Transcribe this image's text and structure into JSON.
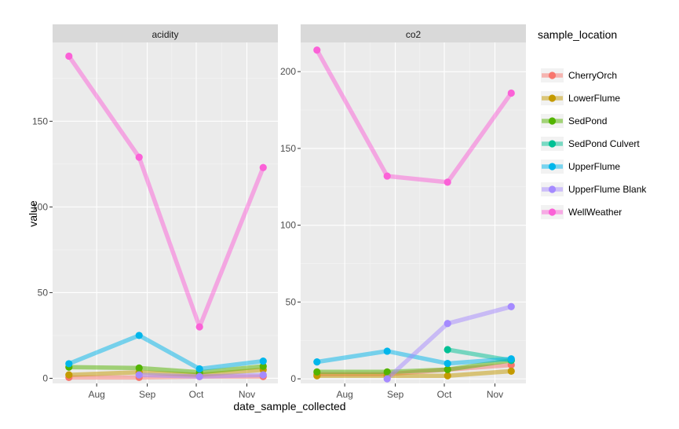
{
  "chart_data": {
    "type": "line",
    "xlabel": "date_sample_collected",
    "ylabel": "value",
    "legend_title": "sample_location",
    "legend_position": "right",
    "grid": true,
    "x_ticks": [
      "Aug",
      "Sep",
      "Oct",
      "Nov"
    ],
    "x_dates": [
      "2014-07-15",
      "2014-08-27",
      "2014-10-03",
      "2014-11-11"
    ],
    "colors": {
      "CherryOrch": "#F8766D",
      "LowerFlume": "#C49A00",
      "SedPond": "#53B400",
      "SedPond Culvert": "#00C094",
      "UpperFlume": "#00B6EB",
      "UpperFlume Blank": "#A58AFF",
      "WellWeather": "#FB61D7"
    },
    "panels": [
      {
        "title": "acidity",
        "y_ticks": [
          0,
          50,
          100,
          150
        ],
        "ylim": [
          -3,
          196
        ],
        "series": [
          {
            "name": "CherryOrch",
            "values": [
              0.5,
              0.5,
              1,
              1
            ]
          },
          {
            "name": "LowerFlume",
            "values": [
              2,
              3.5,
              2,
              5
            ]
          },
          {
            "name": "SedPond",
            "values": [
              6.5,
              6,
              3.5,
              7
            ]
          },
          {
            "name": "UpperFlume",
            "values": [
              8.5,
              25,
              5.5,
              10
            ]
          },
          {
            "name": "UpperFlume Blank",
            "values": [
              null,
              2,
              1,
              2
            ]
          },
          {
            "name": "WellWeather",
            "values": [
              188,
              129,
              30,
              123
            ]
          }
        ]
      },
      {
        "title": "co2",
        "y_ticks": [
          0,
          50,
          100,
          150,
          200
        ],
        "ylim": [
          -3,
          219
        ],
        "series": [
          {
            "name": "CherryOrch",
            "values": [
              3,
              3,
              6,
              9
            ]
          },
          {
            "name": "LowerFlume",
            "values": [
              2,
              2,
              2,
              5
            ]
          },
          {
            "name": "SedPond",
            "values": [
              4.5,
              4.5,
              6,
              12
            ]
          },
          {
            "name": "SedPond Culvert",
            "values": [
              null,
              null,
              19,
              12
            ]
          },
          {
            "name": "UpperFlume",
            "values": [
              11,
              18,
              10,
              13
            ]
          },
          {
            "name": "UpperFlume Blank",
            "values": [
              null,
              0,
              36,
              47
            ]
          },
          {
            "name": "WellWeather",
            "values": [
              214,
              132,
              128,
              186
            ]
          }
        ]
      }
    ]
  }
}
